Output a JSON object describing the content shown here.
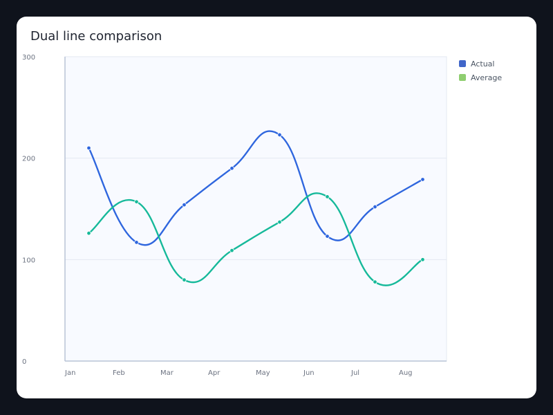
{
  "chart_data": {
    "type": "line",
    "title": "Dual line comparison",
    "categories": [
      "Jan",
      "Feb",
      "Mar",
      "Apr",
      "May",
      "Jun",
      "Jul",
      "Aug"
    ],
    "y_ticks": [
      "0",
      "100",
      "200",
      "300"
    ],
    "ylim": [
      0,
      300
    ],
    "grid": true,
    "legend_position": "top-right",
    "series": [
      {
        "name": "Actual",
        "color": "#2f66de",
        "values": [
          210,
          117,
          154,
          190,
          223,
          123,
          152,
          179
        ]
      },
      {
        "name": "Average",
        "color": "#16b99a",
        "values": [
          126,
          157,
          80,
          109,
          137,
          162,
          78,
          100
        ]
      }
    ],
    "legend_colors": [
      "#4066c9",
      "#8fce70"
    ]
  }
}
